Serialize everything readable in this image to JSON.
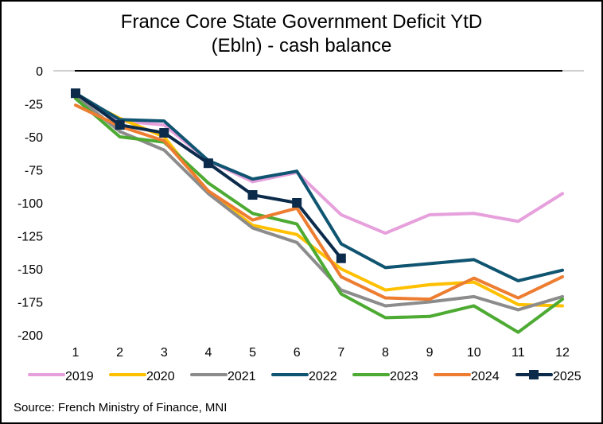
{
  "chart_data": {
    "type": "line",
    "title": "France Core State Government Deficit YtD",
    "subtitle": "(Ebln) - cash balance",
    "xlabel": "",
    "ylabel": "",
    "x": [
      1,
      2,
      3,
      4,
      5,
      6,
      7,
      8,
      9,
      10,
      11,
      12
    ],
    "x_tick_labels": [
      "1",
      "2",
      "3",
      "4",
      "5",
      "6",
      "7",
      "8",
      "9",
      "10",
      "11",
      "12"
    ],
    "ylim": [
      -200,
      0
    ],
    "y_ticks": [
      0,
      -25,
      -50,
      -75,
      -100,
      -125,
      -150,
      -175,
      -200
    ],
    "y_tick_labels": [
      "0",
      "-25",
      "-50",
      "-75",
      "-100",
      "-125",
      "-150",
      "-175",
      "-200"
    ],
    "grid": false,
    "legend_position": "bottom",
    "series": [
      {
        "name": "2019",
        "color": "#E6A0DC",
        "marker": "none",
        "values": [
          -18,
          -38,
          -41,
          -68,
          -84,
          -77,
          -109,
          -123,
          -109,
          -108,
          -114,
          -93
        ]
      },
      {
        "name": "2020",
        "color": "#FFC000",
        "marker": "none",
        "values": [
          -19,
          -36,
          -50,
          -92,
          -117,
          -124,
          -150,
          -166,
          -162,
          -160,
          -177,
          -178
        ]
      },
      {
        "name": "2021",
        "color": "#8C8C8C",
        "marker": "none",
        "values": [
          -19,
          -46,
          -60,
          -93,
          -119,
          -130,
          -166,
          -178,
          -175,
          -171,
          -181,
          -171
        ]
      },
      {
        "name": "2022",
        "color": "#0F5470",
        "marker": "none",
        "values": [
          -17,
          -37,
          -38,
          -68,
          -82,
          -76,
          -131,
          -149,
          -146,
          -143,
          -159,
          -151
        ]
      },
      {
        "name": "2023",
        "color": "#4DAA32",
        "marker": "none",
        "values": [
          -21,
          -50,
          -54,
          -85,
          -108,
          -116,
          -169,
          -187,
          -186,
          -178,
          -198,
          -173
        ]
      },
      {
        "name": "2024",
        "color": "#ED7D31",
        "marker": "none",
        "values": [
          -26,
          -42,
          -53,
          -91,
          -113,
          -104,
          -156,
          -172,
          -173,
          -157,
          -172,
          -156
        ]
      },
      {
        "name": "2025",
        "color": "#0C2B4B",
        "marker": "square",
        "values": [
          -17,
          -41,
          -47,
          -70,
          -94,
          -100,
          -142,
          null,
          null,
          null,
          null,
          null
        ]
      }
    ],
    "source": "Source: French Ministry of Finance, MNI"
  }
}
